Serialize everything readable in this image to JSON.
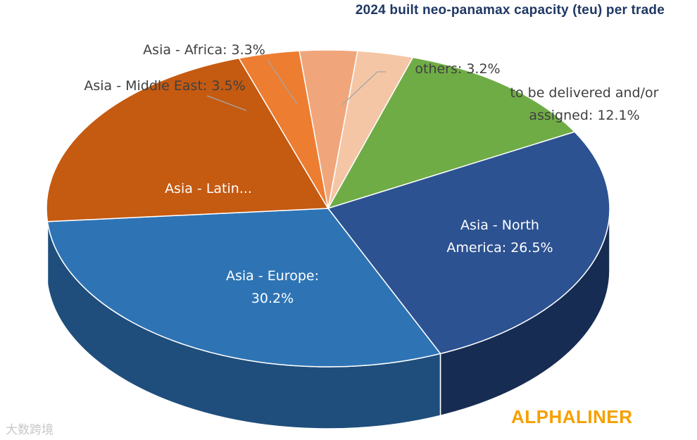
{
  "title": "2024 built neo-panamax capacity (teu) per trade",
  "brand": "ALPHALINER",
  "watermark": "大数跨境",
  "chart_data": {
    "type": "pie",
    "title": "2024 built neo-panamax capacity (teu) per trade",
    "unit": "%",
    "slices": [
      {
        "name": "others",
        "value": 3.2,
        "label_lines": [
          "others: 3.2%"
        ],
        "color": "#f4c6a6",
        "side": "#e7b792"
      },
      {
        "name": "to be delivered and/or assigned",
        "value": 12.1,
        "label_lines": [
          "to be delivered and/or",
          "assigned: 12.1%"
        ],
        "color": "#6fac46",
        "side": "#4f7d31"
      },
      {
        "name": "Asia - North America",
        "value": 26.5,
        "label_lines": [
          "Asia - North",
          "America: 26.5%"
        ],
        "color": "#2c5291",
        "side": "#172c52"
      },
      {
        "name": "Asia - Europe",
        "value": 30.2,
        "label_lines": [
          "Asia - Europe:",
          "30.2%"
        ],
        "color": "#2e74b5",
        "side": "#1f4e7c"
      },
      {
        "name": "Asia - Latin...",
        "value": 21.2,
        "label_lines": [
          "Asia - Latin..."
        ],
        "color": "#c55a11",
        "side": "#8c3f0b"
      },
      {
        "name": "Asia - Middle East",
        "value": 3.5,
        "label_lines": [
          "Asia - Middle East: 3.5%"
        ],
        "color": "#ed7d31",
        "side": "#b35e24"
      },
      {
        "name": "Asia - Africa",
        "value": 3.3,
        "label_lines": [
          "Asia - Africa: 3.3%"
        ],
        "color": "#f0a67a",
        "side": "#c7835c"
      }
    ]
  }
}
